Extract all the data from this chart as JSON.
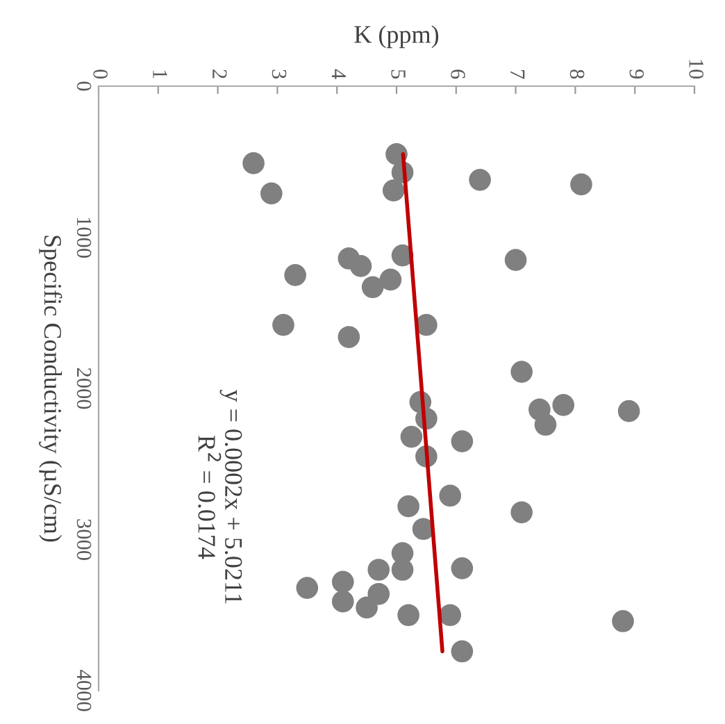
{
  "chart_data": {
    "type": "scatter",
    "xlabel": "K (ppm)",
    "ylabel": "Specific Conductivity (µS/cm)",
    "xlim": [
      0,
      10
    ],
    "xticks": [
      0,
      1,
      2,
      3,
      4,
      5,
      6,
      7,
      8,
      9,
      10
    ],
    "ylim": [
      4000,
      0
    ],
    "yticks": [
      0,
      1000,
      2000,
      3000,
      4000
    ],
    "grid": false,
    "annotations": [
      "y = 0.0002x + 5.0211\nR$^{2}$ = 0.0174"
    ],
    "series": [
      {
        "color": "#808080",
        "marker": "circle",
        "x": [
          2.6,
          2.9,
          5.0,
          5.1,
          4.95,
          6.4,
          8.1,
          4.2,
          4.4,
          3.3,
          5.1,
          4.9,
          4.6,
          7.0,
          3.1,
          4.2,
          5.5,
          7.1,
          5.4,
          5.5,
          7.4,
          7.8,
          7.5,
          8.9,
          5.25,
          6.1,
          5.5,
          5.9,
          5.2,
          7.1,
          5.45,
          5.1,
          6.1,
          4.7,
          5.1,
          4.1,
          3.5,
          4.7,
          4.1,
          4.5,
          5.2,
          5.9,
          8.8,
          6.1
        ],
        "values": [
          510,
          710,
          450,
          570,
          690,
          620,
          650,
          1140,
          1190,
          1250,
          1120,
          1280,
          1330,
          1150,
          1580,
          1660,
          1580,
          1890,
          2090,
          2200,
          2140,
          2110,
          2240,
          2150,
          2320,
          2350,
          2450,
          2710,
          2780,
          2820,
          2930,
          3090,
          3190,
          3200,
          3200,
          3280,
          3320,
          3360,
          3410,
          3450,
          3500,
          3500,
          3540,
          3740
        ]
      },
      {
        "type": "line",
        "color": "#c00000",
        "marker": "none",
        "x": [
          5.11,
          5.77
        ],
        "values": [
          450,
          3740
        ]
      }
    ]
  }
}
